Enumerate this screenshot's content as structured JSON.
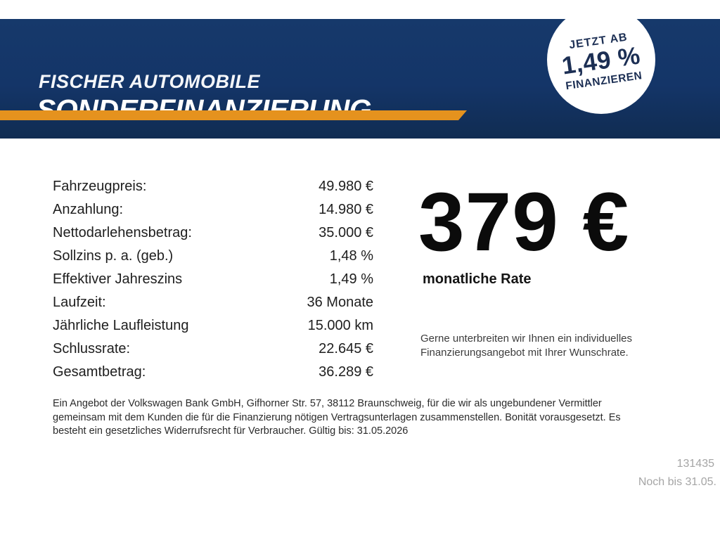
{
  "header": {
    "brand_line1": "FISCHER AUTOMOBILE",
    "brand_line2": "SONDERFINANZIERUNG",
    "colors": {
      "band_navy": "#143568",
      "stripe_orange": "#e5921e",
      "text_white": "#ffffff"
    }
  },
  "badge": {
    "line1": "JETZT AB",
    "rate": "1,49 %",
    "line2": "FINANZIEREN",
    "text_color": "#1c2f54",
    "background": "#ffffff"
  },
  "finance_table": {
    "rows": [
      {
        "label": "Fahrzeugpreis:",
        "value": "49.980 €"
      },
      {
        "label": "Anzahlung:",
        "value": "14.980 €"
      },
      {
        "label": "Nettodarlehensbetrag:",
        "value": "35.000 €"
      },
      {
        "label": "Sollzins p. a. (geb.)",
        "value": "1,48 %"
      },
      {
        "label": "Effektiver Jahreszins",
        "value": "1,49 %"
      },
      {
        "label": "Laufzeit:",
        "value": "36 Monate"
      },
      {
        "label": "Jährliche Laufleistung",
        "value": "15.000 km"
      },
      {
        "label": "Schlussrate:",
        "value": "22.645 €"
      },
      {
        "label": "Gesamtbetrag:",
        "value": "36.289 €"
      }
    ]
  },
  "rate": {
    "amount": "379 €",
    "caption": "monatliche Rate"
  },
  "offer_text": {
    "lines": [
      "Gerne unterbreiten wir Ihnen ein individuelles",
      "Finanzierungsangebot mit Ihrer Wunschrate."
    ]
  },
  "disclaimer": {
    "lines": [
      "Ein Angebot der Volkswagen Bank GmbH, Gifhorner Str. 57, 38112 Braunschweig, für die wir als ungebundener Vermittler",
      "gemeinsam mit dem Kunden die für die Finanzierung nötigen Vertragsunterlagen zusammenstellen. Bonität vorausgesetzt. Es",
      "besteht ein gesetzliches Widerrufsrecht für Verbraucher. Gültig bis: 31.05.2026"
    ]
  },
  "footer": {
    "code": "131435",
    "note": "Noch bis 31.05.",
    "text_color": "#a5a5a5"
  }
}
